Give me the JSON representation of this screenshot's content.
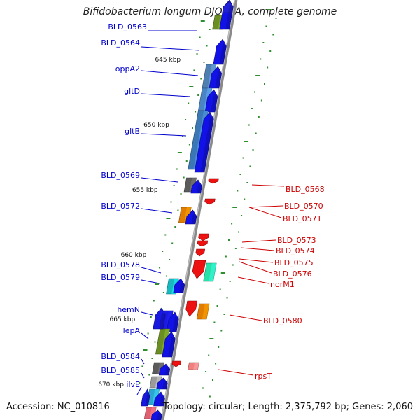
{
  "title": "Bifidobacterium longum DJO10A, complete genome",
  "accession": "Accession: NC_010816",
  "topology": "Topology: circular; Length: 2,375,792 bp; Genes: 2,060",
  "colors": {
    "forward_label": "#0000cc",
    "reverse_label": "#cc0000",
    "backbone": "#8a8a8a",
    "tick": "#2f8f2f"
  },
  "kbp_marks": [
    "645 kbp",
    "650 kbp",
    "655 kbp",
    "660 kbp",
    "665 kbp",
    "670 kbp"
  ],
  "forward_genes": [
    "BLD_0563",
    "BLD_0564",
    "oppA2",
    "gltD",
    "gltB",
    "BLD_0569",
    "BLD_0572",
    "BLD_0578",
    "BLD_0579",
    "hemN",
    "lepA",
    "BLD_0584",
    "BLD_0585",
    "ilvE"
  ],
  "reverse_genes": [
    "BLD_0568",
    "BLD_0570",
    "BLD_0571",
    "BLD_0573",
    "BLD_0574",
    "BLD_0575",
    "BLD_0576",
    "norM1",
    "BLD_0580",
    "rpsT"
  ]
}
